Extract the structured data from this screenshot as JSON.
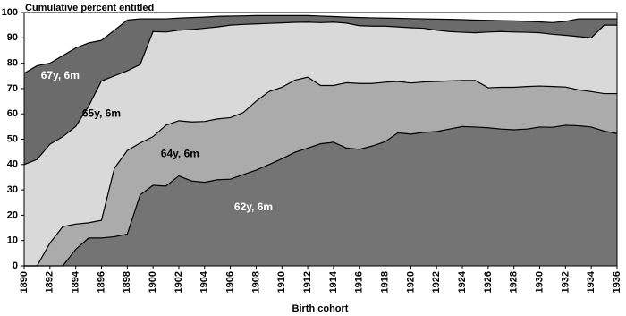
{
  "chart_data": {
    "type": "area",
    "title": "Cumulative percent entitled",
    "x_label": "Birth cohort",
    "x": [
      1890,
      1891,
      1892,
      1893,
      1894,
      1895,
      1896,
      1897,
      1898,
      1899,
      1900,
      1901,
      1902,
      1903,
      1904,
      1905,
      1906,
      1907,
      1908,
      1909,
      1910,
      1911,
      1912,
      1913,
      1914,
      1915,
      1916,
      1917,
      1918,
      1919,
      1920,
      1921,
      1922,
      1923,
      1924,
      1925,
      1926,
      1927,
      1928,
      1929,
      1930,
      1931,
      1932,
      1933,
      1934,
      1935,
      1936
    ],
    "xlim": [
      1890,
      1936
    ],
    "xticks": [
      1890,
      1892,
      1894,
      1896,
      1898,
      1900,
      1902,
      1904,
      1906,
      1908,
      1910,
      1912,
      1914,
      1916,
      1918,
      1920,
      1922,
      1924,
      1926,
      1928,
      1930,
      1932,
      1934,
      1936
    ],
    "ylim": [
      0,
      100
    ],
    "yticks": [
      0,
      10,
      20,
      30,
      40,
      50,
      60,
      70,
      80,
      90,
      100
    ],
    "series": [
      {
        "name": "67y, 6m",
        "color": "#6b6b6b",
        "values": [
          76,
          79,
          80,
          83,
          86,
          88,
          89,
          93,
          97,
          97.5,
          97.5,
          97.5,
          97.8,
          98,
          98.2,
          98.5,
          98.6,
          98.7,
          98.8,
          98.8,
          98.8,
          98.8,
          98.8,
          98.6,
          98.4,
          98.2,
          98,
          97.9,
          97.8,
          97.7,
          97.6,
          97.5,
          97.4,
          97.3,
          97.2,
          97,
          96.9,
          96.8,
          96.7,
          96.5,
          96.3,
          96,
          96.5,
          97.5,
          97.5,
          97.5,
          97.5
        ]
      },
      {
        "name": "65y, 6m",
        "color": "#d9d9d9",
        "values": [
          40,
          42,
          48,
          51,
          55,
          63,
          73,
          75,
          77,
          79.5,
          92.5,
          92.3,
          93,
          93.3,
          93.8,
          94.3,
          95,
          95.3,
          95.5,
          95.7,
          95.9,
          96.1,
          96.2,
          96,
          96.2,
          95.8,
          94.8,
          94.6,
          94.6,
          94.3,
          94,
          93.8,
          93,
          92.5,
          92.2,
          92,
          92.3,
          92.5,
          92.3,
          92.2,
          92,
          91.4,
          91,
          90.5,
          90,
          95,
          95
        ]
      },
      {
        "name": "64y, 6m",
        "color": "#ababab",
        "values": [
          0,
          0,
          9,
          15.5,
          16.5,
          17,
          18,
          38.5,
          45.5,
          48.5,
          51,
          55.5,
          57.3,
          56.8,
          57,
          58,
          58.5,
          60.5,
          65,
          68.8,
          70.5,
          73.3,
          74.5,
          71.2,
          71.2,
          72.3,
          72,
          72,
          72.5,
          72.8,
          72.2,
          72.6,
          72.8,
          73,
          73.2,
          73.2,
          70.3,
          70.5,
          70.5,
          70.8,
          71,
          70.8,
          70.6,
          69.5,
          68.8,
          68,
          68
        ]
      },
      {
        "name": "62y, 6m",
        "color": "#747474",
        "values": [
          0,
          0,
          0,
          0,
          6.5,
          11,
          11,
          11.5,
          12.5,
          28,
          31.8,
          31.5,
          35.5,
          33.5,
          33,
          34,
          34.2,
          36,
          37.8,
          40,
          42.3,
          44.8,
          46.5,
          48.2,
          48.8,
          46.5,
          46,
          47.3,
          49,
          52.5,
          52,
          52.7,
          53,
          54,
          55,
          54.8,
          54.5,
          54,
          53.7,
          54,
          54.8,
          54.7,
          55.5,
          55.3,
          54.8,
          53.2,
          52.2
        ]
      }
    ]
  }
}
